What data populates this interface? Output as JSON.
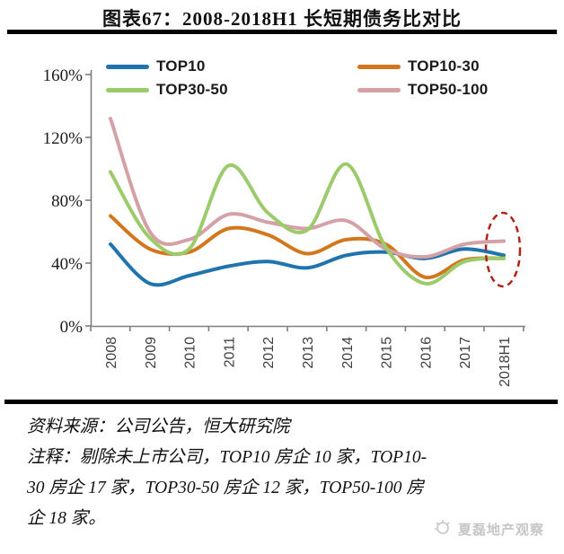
{
  "title": "图表67：2008-2018H1 长短期债务比对比",
  "chart_data": {
    "type": "line",
    "categories": [
      "2008",
      "2009",
      "2010",
      "2011",
      "2012",
      "2013",
      "2014",
      "2015",
      "2016",
      "2017",
      "2018H1"
    ],
    "series": [
      {
        "name": "TOP10",
        "color": "#1F74AD",
        "values": [
          52,
          27,
          32,
          38,
          41,
          37,
          45,
          47,
          43,
          49,
          45
        ]
      },
      {
        "name": "TOP10-30",
        "color": "#D2771E",
        "values": [
          70,
          49,
          47,
          62,
          58,
          46,
          55,
          52,
          31,
          42,
          43
        ]
      },
      {
        "name": "TOP30-50",
        "color": "#9CCB6B",
        "values": [
          98,
          56,
          49,
          102,
          72,
          61,
          103,
          50,
          27,
          41,
          43
        ]
      },
      {
        "name": "TOP50-100",
        "color": "#D4A1A6",
        "values": [
          132,
          60,
          55,
          71,
          66,
          62,
          67,
          49,
          44,
          52,
          54
        ]
      }
    ],
    "ylim": [
      0,
      160
    ],
    "ytick_step": 40,
    "ytick_labels": [
      "0%",
      "40%",
      "80%",
      "120%",
      "160%"
    ],
    "grid": false,
    "legend_position": "top",
    "axis_color": "#7f7f7f",
    "annotation": {
      "shape": "dashed-ellipse",
      "category": "2018H1",
      "color": "#B02418"
    }
  },
  "footer": {
    "lines": [
      "资料来源：公司公告，恒大研究院",
      "注释：剔除未上市公司，TOP10 房企 10 家，TOP10-",
      "30 房企 17 家，TOP30-50 房企 12 家，TOP50-100 房",
      "企 18 家。"
    ]
  },
  "watermark": {
    "text": "夏磊地产观察"
  }
}
